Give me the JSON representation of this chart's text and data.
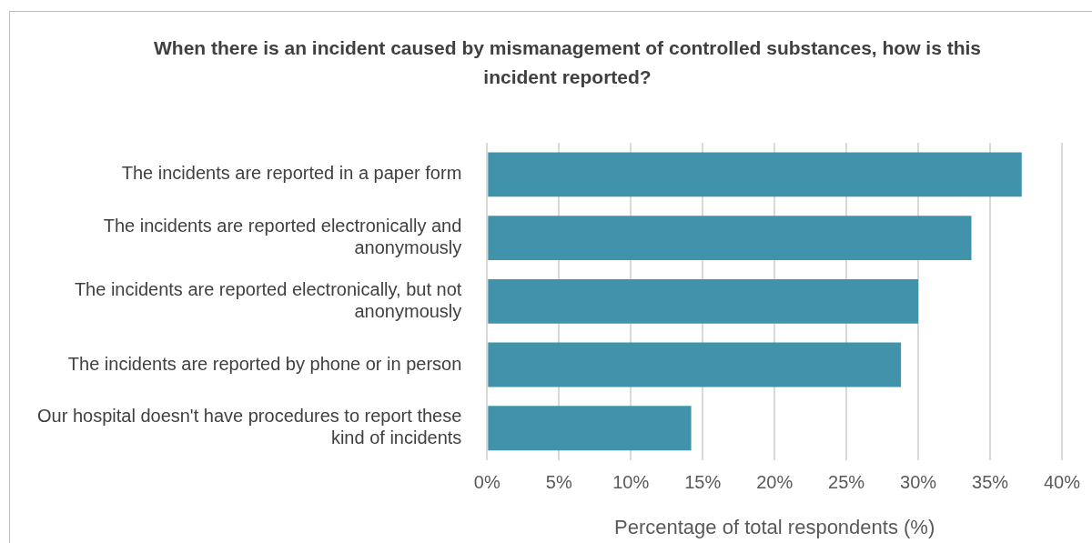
{
  "chart_data": {
    "type": "bar",
    "orientation": "horizontal",
    "title": "When there is an incident caused by mismanagement of controlled substances, how is this incident reported?",
    "xlabel": "Percentage of total respondents (%)",
    "categories": [
      "The incidents are reported in a paper form",
      "The incidents are reported electronically and anonymously",
      "The incidents are reported electronically, but not anonymously",
      "The incidents are reported by phone or in person",
      "Our hospital doesn't have procedures to report these kind of incidents"
    ],
    "values": [
      37.2,
      33.7,
      30.0,
      28.8,
      14.2
    ],
    "color": "#4193ab",
    "xlim": [
      0,
      40
    ],
    "xticks": [
      {
        "value": 0,
        "label": "0%"
      },
      {
        "value": 5,
        "label": "5%"
      },
      {
        "value": 10,
        "label": "10%"
      },
      {
        "value": 15,
        "label": "15%"
      },
      {
        "value": 20,
        "label": "20%"
      },
      {
        "value": 25,
        "label": "25%"
      },
      {
        "value": 30,
        "label": "30%"
      },
      {
        "value": 35,
        "label": "35%"
      },
      {
        "value": 40,
        "label": "40%"
      }
    ],
    "grid": "x"
  }
}
